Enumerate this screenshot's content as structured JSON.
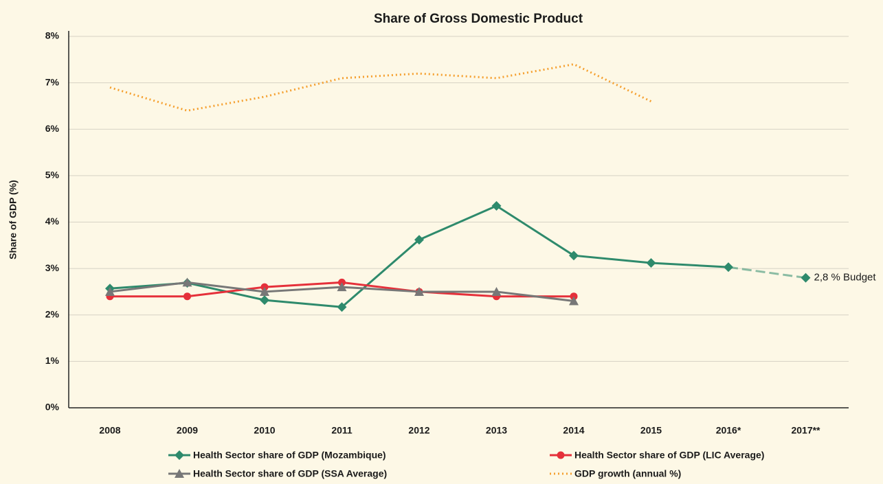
{
  "chart_data": {
    "type": "line",
    "title": "Share of Gross Domestic Product",
    "y_label": "Share of GDP (%)",
    "categories": [
      "2008",
      "2009",
      "2010",
      "2011",
      "2012",
      "2013",
      "2014",
      "2015",
      "2016*",
      "2017**"
    ],
    "series": [
      {
        "name": "Health Sector share of GDP (Mozambique)",
        "color": "#2e8a6c",
        "marker": "diamond",
        "line": "solid",
        "last_segment_dashed": true,
        "values": [
          2.57,
          2.69,
          2.32,
          2.17,
          3.62,
          4.35,
          3.28,
          3.12,
          3.03,
          2.8
        ]
      },
      {
        "name": "Health Sector share of GDP (LIC Average)",
        "color": "#e5303a",
        "marker": "circle",
        "line": "solid",
        "values": [
          2.4,
          2.4,
          2.6,
          2.7,
          2.5,
          2.4,
          2.4,
          null,
          null,
          null
        ]
      },
      {
        "name": "Health Sector share of GDP (SSA Average)",
        "color": "#777777",
        "marker": "triangle",
        "line": "solid",
        "values": [
          2.5,
          2.7,
          2.5,
          2.6,
          2.5,
          2.5,
          2.3,
          null,
          null,
          null
        ]
      },
      {
        "name": "GDP growth (annual %)",
        "color": "#f5a030",
        "marker": "none",
        "line": "dotted",
        "values": [
          6.9,
          6.4,
          6.7,
          7.1,
          7.2,
          7.1,
          7.4,
          6.6,
          null,
          null
        ]
      }
    ],
    "annotation": "2,8 % Budget",
    "ylim": [
      0,
      8
    ],
    "yticks": [
      {
        "value": 0,
        "label": "0%"
      },
      {
        "value": 1,
        "label": "1%"
      },
      {
        "value": 2,
        "label": "2%"
      },
      {
        "value": 3,
        "label": "3%"
      },
      {
        "value": 4,
        "label": "4%"
      },
      {
        "value": 5,
        "label": "5%"
      },
      {
        "value": 6,
        "label": "6%"
      },
      {
        "value": 7,
        "label": "7%"
      },
      {
        "value": 8,
        "label": "8%"
      }
    ],
    "grid": true
  }
}
